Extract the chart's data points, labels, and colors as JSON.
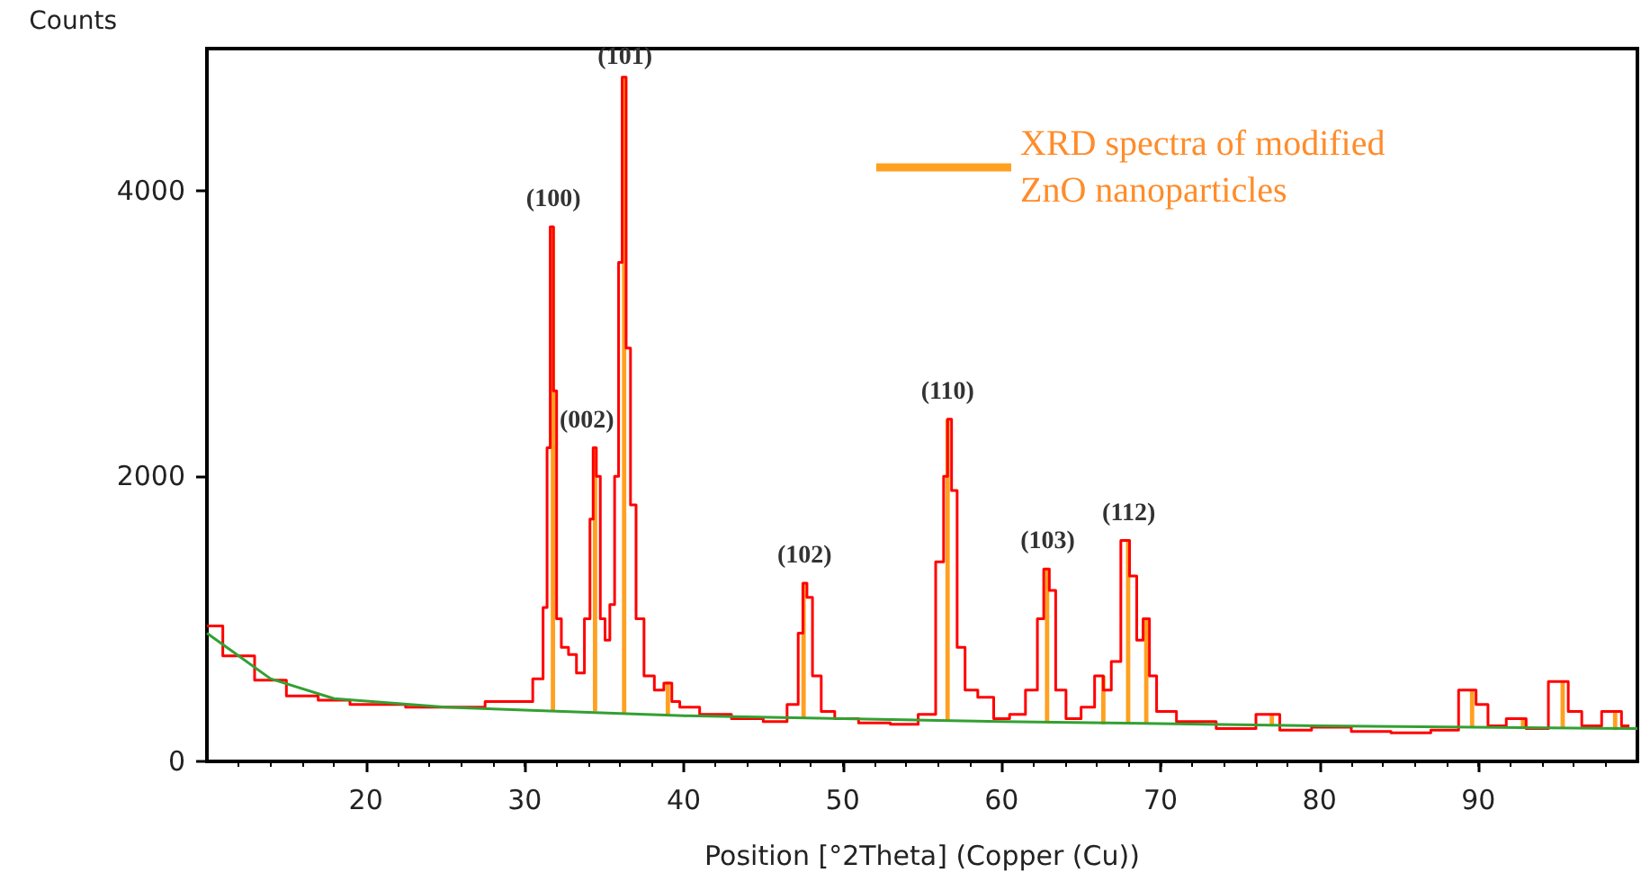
{
  "chart_data": {
    "type": "step",
    "xlabel": "Position [°2Theta] (Copper (Cu))",
    "ylabel": "Counts",
    "xlim": [
      10,
      100
    ],
    "ylim": [
      0,
      5000
    ],
    "xticks": [
      20,
      30,
      40,
      50,
      60,
      70,
      80,
      90
    ],
    "yticks": [
      0,
      2000,
      4000
    ],
    "grid": false,
    "legend": "top right",
    "marker": "none",
    "series": [
      {
        "color": "#ff0000",
        "x": [
          10,
          12,
          14,
          16,
          18,
          20,
          25,
          30,
          31,
          31.3,
          31.5,
          31.7,
          31.9,
          32.1,
          32.5,
          33,
          33.5,
          34,
          34.2,
          34.4,
          34.6,
          34.9,
          35.2,
          35.5,
          35.8,
          36,
          36.25,
          36.5,
          36.8,
          37.2,
          37.8,
          38.5,
          39,
          39.5,
          40,
          42,
          44,
          46,
          47,
          47.4,
          47.6,
          47.9,
          48.3,
          49,
          50,
          52,
          54,
          55.5,
          56.2,
          56.5,
          56.7,
          57,
          57.4,
          58,
          59,
          60,
          61,
          62,
          62.5,
          62.8,
          63.2,
          63.6,
          64.5,
          65.5,
          66.2,
          66.6,
          67.2,
          67.8,
          68.3,
          68.7,
          69.1,
          69.5,
          70,
          72,
          75,
          77,
          78,
          81,
          83,
          86,
          88,
          89.5,
          90.2,
          91,
          92.5,
          93.5,
          95.3,
          96,
          97,
          98.5,
          99.5
        ],
        "values": [
          950,
          740,
          570,
          460,
          430,
          400,
          380,
          420,
          580,
          1080,
          2200,
          3750,
          2600,
          1000,
          800,
          750,
          620,
          1000,
          1700,
          2200,
          2000,
          1000,
          850,
          1100,
          2000,
          3500,
          4800,
          2900,
          1800,
          1000,
          600,
          500,
          550,
          420,
          380,
          330,
          300,
          280,
          400,
          900,
          1250,
          1150,
          600,
          350,
          300,
          270,
          260,
          330,
          1400,
          2000,
          2400,
          1900,
          800,
          500,
          450,
          300,
          330,
          500,
          1000,
          1350,
          1200,
          500,
          300,
          380,
          600,
          500,
          700,
          1550,
          1300,
          850,
          1000,
          600,
          350,
          280,
          230,
          330,
          220,
          240,
          210,
          200,
          220,
          500,
          400,
          250,
          300,
          230,
          560,
          350,
          250,
          350,
          250
        ]
      },
      {
        "type": "line",
        "color": "#33a033",
        "x": [
          10,
          14,
          18,
          25,
          30,
          40,
          60,
          80,
          100
        ],
        "values": [
          900,
          580,
          440,
          380,
          360,
          320,
          280,
          250,
          230
        ]
      },
      {
        "type": "bar",
        "name": "XRD spectra of modified ZnO nanoparticles",
        "color": "#ffa020",
        "x": [
          31.77,
          34.42,
          36.25,
          39,
          47.54,
          56.6,
          62.86,
          66.4,
          67.96,
          69.1,
          77,
          89.6,
          92.8,
          95.3,
          98.6
        ],
        "base": [
          360,
          350,
          340,
          320,
          300,
          280,
          270,
          260,
          260,
          260,
          250,
          240,
          240,
          230,
          220
        ],
        "values": [
          3390,
          1850,
          4460,
          240,
          950,
          2120,
          1080,
          340,
          1290,
          740,
          80,
          260,
          60,
          330,
          130
        ]
      }
    ],
    "annotations": [
      {
        "text": "(100)",
        "x": 31.8,
        "y": 3800
      },
      {
        "text": "(002)",
        "x": 33.9,
        "y": 2250
      },
      {
        "text": "(101)",
        "x": 36.3,
        "y": 4800
      },
      {
        "text": "(102)",
        "x": 47.6,
        "y": 1300
      },
      {
        "text": "(110)",
        "x": 56.6,
        "y": 2450
      },
      {
        "text": "(103)",
        "x": 62.9,
        "y": 1400
      },
      {
        "text": "(112)",
        "x": 68.0,
        "y": 1600
      }
    ]
  }
}
